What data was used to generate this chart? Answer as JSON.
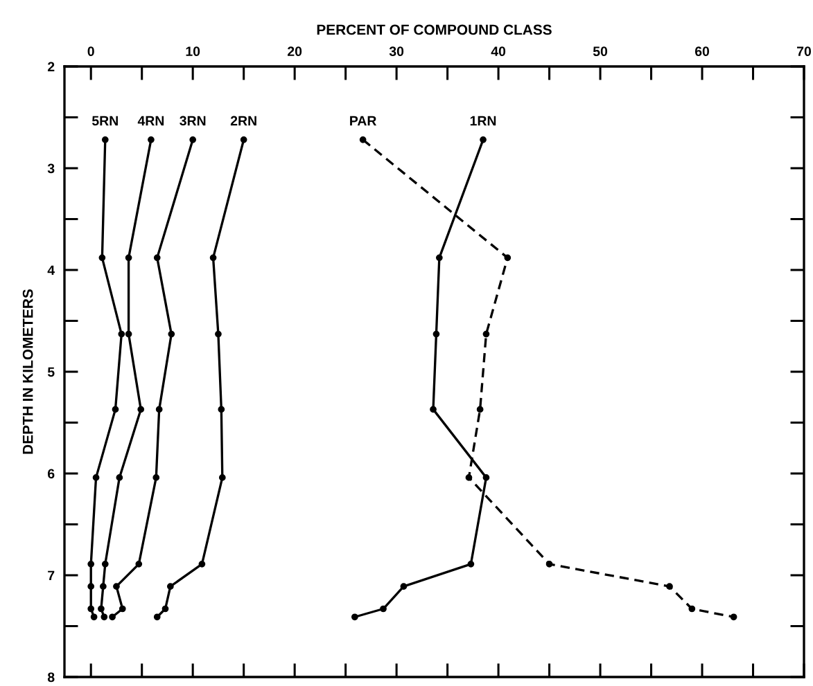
{
  "chart_data": {
    "type": "line",
    "xlabel": "PERCENT OF COMPOUND CLASS",
    "ylabel": "DEPTH IN KILOMETERS",
    "xlim": [
      -2.6,
      70
    ],
    "xticks": [
      0,
      10,
      20,
      30,
      40,
      50,
      60,
      70
    ],
    "ylim": [
      8,
      2
    ],
    "yticks": [
      2,
      3,
      4,
      5,
      6,
      7,
      8
    ],
    "marker": "circle",
    "grid": false,
    "series": [
      {
        "name": "5RN",
        "color": "#000000",
        "line_style": "solid",
        "x": [
          1.4,
          1.1,
          3.0,
          2.4,
          0.5,
          0.0,
          0.0,
          0.0,
          0.3
        ],
        "values": [
          2.72,
          3.88,
          4.63,
          5.37,
          6.04,
          6.89,
          7.11,
          7.33,
          7.41
        ]
      },
      {
        "name": "4RN",
        "color": "#000000",
        "line_style": "solid",
        "x": [
          5.9,
          3.7,
          3.7,
          4.9,
          2.8,
          1.4,
          1.2,
          1.0,
          1.3
        ],
        "values": [
          2.72,
          3.88,
          4.63,
          5.37,
          6.04,
          6.89,
          7.11,
          7.33,
          7.41
        ]
      },
      {
        "name": "3RN",
        "color": "#000000",
        "line_style": "solid",
        "x": [
          10.0,
          6.5,
          7.9,
          6.7,
          6.4,
          4.7,
          2.5,
          3.1,
          2.1
        ],
        "values": [
          2.72,
          3.88,
          4.63,
          5.37,
          6.04,
          6.89,
          7.11,
          7.33,
          7.41
        ]
      },
      {
        "name": "2RN",
        "color": "#000000",
        "line_style": "solid",
        "x": [
          15.0,
          12.0,
          12.5,
          12.8,
          12.9,
          10.9,
          7.8,
          7.3,
          6.5
        ],
        "values": [
          2.72,
          3.88,
          4.63,
          5.37,
          6.04,
          6.89,
          7.11,
          7.33,
          7.41
        ]
      },
      {
        "name": "PAR",
        "color": "#000000",
        "line_style": "dashed",
        "x": [
          26.7,
          40.9,
          38.8,
          38.2,
          37.1,
          45.0,
          56.8,
          59.0,
          63.1
        ],
        "values": [
          2.72,
          3.88,
          4.63,
          5.37,
          6.04,
          6.89,
          7.11,
          7.33,
          7.41
        ]
      },
      {
        "name": "1RN",
        "color": "#000000",
        "line_style": "solid",
        "x": [
          38.5,
          34.2,
          33.9,
          33.6,
          38.8,
          37.3,
          30.7,
          28.7,
          25.9
        ],
        "values": [
          2.72,
          3.88,
          4.63,
          5.37,
          6.04,
          6.89,
          7.11,
          7.33,
          7.41
        ]
      }
    ],
    "tick_labels": "xy"
  }
}
